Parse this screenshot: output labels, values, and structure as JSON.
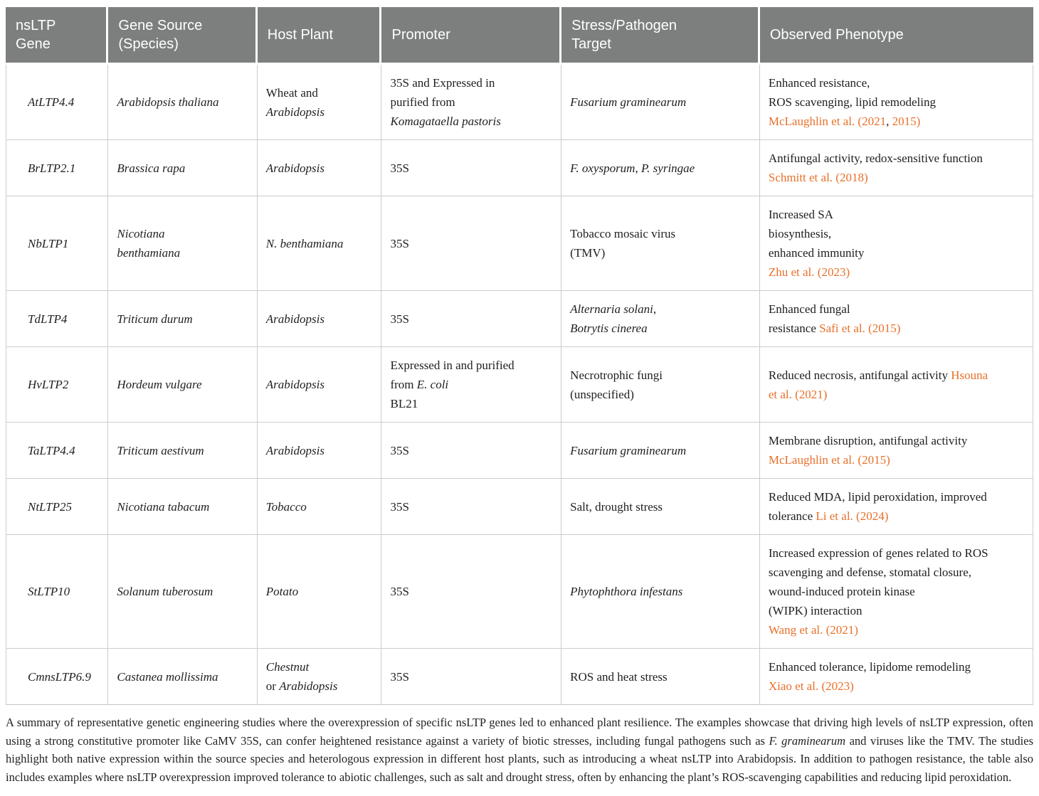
{
  "colors": {
    "header_bg": "#7c7f7e",
    "header_text": "#ffffff",
    "body_text": "#1e1e1e",
    "grid_border": "#cccccc",
    "citation": "#e8702a"
  },
  "table": {
    "columns": [
      {
        "id": "gene",
        "lines": [
          "nsLTP",
          "Gene"
        ]
      },
      {
        "id": "source",
        "lines": [
          "Gene Source",
          "(Species)"
        ]
      },
      {
        "id": "host",
        "lines": [
          "Host Plant"
        ]
      },
      {
        "id": "promoter",
        "lines": [
          "Promoter"
        ]
      },
      {
        "id": "stress",
        "lines": [
          "Stress/Pathogen",
          "Target"
        ]
      },
      {
        "id": "phenotype",
        "lines": [
          "Observed Phenotype"
        ]
      }
    ],
    "rows": [
      {
        "gene": [
          {
            "t": "AtLTP4.4",
            "i": 1
          }
        ],
        "source": [
          {
            "t": "Arabidopsis thaliana",
            "i": 1
          }
        ],
        "host": [
          {
            "t": "Wheat and"
          },
          {
            "nl": 1
          },
          {
            "t": "Arabidopsis",
            "i": 1
          }
        ],
        "promoter": [
          {
            "t": "35S and Expressed in"
          },
          {
            "nl": 1
          },
          {
            "t": "purified from"
          },
          {
            "nl": 1
          },
          {
            "t": "Komagataella pastoris",
            "i": 1
          }
        ],
        "stress": [
          {
            "t": "Fusarium graminearum",
            "i": 1
          }
        ],
        "phenotype": [
          {
            "t": "Enhanced resistance,"
          },
          {
            "nl": 1
          },
          {
            "t": "ROS scavenging, lipid remodeling"
          },
          {
            "nl": 1
          },
          {
            "t": "McLaughlin et al. (2021",
            "c": 1
          },
          {
            "t": ", "
          },
          {
            "t": "2015)",
            "c": 1
          }
        ]
      },
      {
        "gene": [
          {
            "t": "BrLTP2.1",
            "i": 1
          }
        ],
        "source": [
          {
            "t": "Brassica rapa",
            "i": 1
          }
        ],
        "host": [
          {
            "t": "Arabidopsis",
            "i": 1
          }
        ],
        "promoter": [
          {
            "t": "35S"
          }
        ],
        "stress": [
          {
            "t": "F. oxysporum",
            "i": 1
          },
          {
            "t": ", "
          },
          {
            "t": "P. syringae",
            "i": 1
          }
        ],
        "phenotype": [
          {
            "t": "Antifungal activity, redox-sensitive function"
          },
          {
            "nl": 1
          },
          {
            "t": "Schmitt et al. (2018)",
            "c": 1
          }
        ]
      },
      {
        "gene": [
          {
            "t": "NbLTP1",
            "i": 1
          }
        ],
        "source": [
          {
            "t": "Nicotiana",
            "i": 1
          },
          {
            "nl": 1
          },
          {
            "t": "benthamiana",
            "i": 1
          }
        ],
        "host": [
          {
            "t": "N. benthamiana",
            "i": 1
          }
        ],
        "promoter": [
          {
            "t": "35S"
          }
        ],
        "stress": [
          {
            "t": "Tobacco mosaic virus"
          },
          {
            "nl": 1
          },
          {
            "t": "(TMV)"
          }
        ],
        "phenotype": [
          {
            "t": "Increased SA"
          },
          {
            "nl": 1
          },
          {
            "t": "biosynthesis,"
          },
          {
            "nl": 1
          },
          {
            "t": "enhanced immunity"
          },
          {
            "nl": 1
          },
          {
            "t": "Zhu et al. (2023)",
            "c": 1
          }
        ]
      },
      {
        "gene": [
          {
            "t": "TdLTP4",
            "i": 1
          }
        ],
        "source": [
          {
            "t": "Triticum durum",
            "i": 1
          }
        ],
        "host": [
          {
            "t": "Arabidopsis",
            "i": 1
          }
        ],
        "promoter": [
          {
            "t": "35S"
          }
        ],
        "stress": [
          {
            "t": "Alternaria solani",
            "i": 1
          },
          {
            "t": ","
          },
          {
            "nl": 1
          },
          {
            "t": "Botrytis cinerea",
            "i": 1
          }
        ],
        "phenotype": [
          {
            "t": "Enhanced fungal"
          },
          {
            "nl": 1
          },
          {
            "t": "resistance "
          },
          {
            "t": "Safi et al. (2015)",
            "c": 1
          }
        ]
      },
      {
        "gene": [
          {
            "t": "HvLTP2",
            "i": 1
          }
        ],
        "source": [
          {
            "t": "Hordeum vulgare",
            "i": 1
          }
        ],
        "host": [
          {
            "t": "Arabidopsis",
            "i": 1
          }
        ],
        "promoter": [
          {
            "t": "Expressed in and purified"
          },
          {
            "nl": 1
          },
          {
            "t": "from "
          },
          {
            "t": "E. coli",
            "i": 1
          },
          {
            "nl": 1
          },
          {
            "t": "BL21"
          }
        ],
        "stress": [
          {
            "t": "Necrotrophic fungi"
          },
          {
            "nl": 1
          },
          {
            "t": "(unspecified)"
          }
        ],
        "phenotype": [
          {
            "t": "Reduced necrosis, antifungal activity "
          },
          {
            "t": "Hsouna",
            "c": 1
          },
          {
            "nl": 1
          },
          {
            "t": "et al. (2021)",
            "c": 1
          }
        ]
      },
      {
        "gene": [
          {
            "t": "TaLTP4.4",
            "i": 1
          }
        ],
        "source": [
          {
            "t": "Triticum aestivum",
            "i": 1
          }
        ],
        "host": [
          {
            "t": "Arabidopsis",
            "i": 1
          }
        ],
        "promoter": [
          {
            "t": "35S"
          }
        ],
        "stress": [
          {
            "t": "Fusarium graminearum",
            "i": 1
          }
        ],
        "phenotype": [
          {
            "t": "Membrane disruption, antifungal activity"
          },
          {
            "nl": 1
          },
          {
            "t": "McLaughlin et al. (2015)",
            "c": 1
          }
        ]
      },
      {
        "gene": [
          {
            "t": "NtLTP25",
            "i": 1
          }
        ],
        "source": [
          {
            "t": "Nicotiana tabacum",
            "i": 1
          }
        ],
        "host": [
          {
            "t": "Tobacco",
            "i": 1
          }
        ],
        "promoter": [
          {
            "t": "35S"
          }
        ],
        "stress": [
          {
            "t": "Salt, drought stress"
          }
        ],
        "phenotype": [
          {
            "t": "Reduced MDA, lipid peroxidation, improved"
          },
          {
            "nl": 1
          },
          {
            "t": "tolerance "
          },
          {
            "t": "Li et al. (2024)",
            "c": 1
          }
        ]
      },
      {
        "gene": [
          {
            "t": "StLTP10",
            "i": 1
          }
        ],
        "source": [
          {
            "t": "Solanum tuberosum",
            "i": 1
          }
        ],
        "host": [
          {
            "t": "Potato",
            "i": 1
          }
        ],
        "promoter": [
          {
            "t": "35S"
          }
        ],
        "stress": [
          {
            "t": "Phytophthora infestans",
            "i": 1
          }
        ],
        "phenotype": [
          {
            "t": "Increased expression of genes related to ROS"
          },
          {
            "nl": 1
          },
          {
            "t": "scavenging and defense, stomatal closure,"
          },
          {
            "nl": 1
          },
          {
            "t": "wound-induced protein kinase"
          },
          {
            "nl": 1
          },
          {
            "t": "(WIPK) interaction"
          },
          {
            "nl": 1
          },
          {
            "t": "Wang et al. (2021)",
            "c": 1
          }
        ]
      },
      {
        "gene": [
          {
            "t": "CmnsLTP6.9",
            "i": 1
          }
        ],
        "source": [
          {
            "t": "Castanea mollissima",
            "i": 1
          }
        ],
        "host": [
          {
            "t": "Chestnut",
            "i": 1
          },
          {
            "nl": 1
          },
          {
            "t": "or "
          },
          {
            "t": "Arabidopsis",
            "i": 1
          }
        ],
        "promoter": [
          {
            "t": "35S"
          }
        ],
        "stress": [
          {
            "t": "ROS and heat stress"
          }
        ],
        "phenotype": [
          {
            "t": "Enhanced tolerance, lipidome remodeling"
          },
          {
            "nl": 1
          },
          {
            "t": "Xiao et al. (2023)",
            "c": 1
          }
        ]
      }
    ]
  },
  "footnote": {
    "segments": [
      {
        "t": "A summary of representative genetic engineering studies where the overexpression of specific nsLTP genes led to enhanced plant resilience. The examples showcase that driving high levels of nsLTP expression, often using a strong constitutive promoter like CaMV 35S, can confer heightened resistance against a variety of biotic stresses, including fungal pathogens such as "
      },
      {
        "t": "F. graminearum",
        "i": 1
      },
      {
        "t": " and viruses like the TMV. The studies highlight both native expression within the source species and heterologous expression in different host plants, such as introducing a wheat nsLTP into Arabidopsis. In addition to pathogen resistance, the table also includes examples where nsLTP overexpression improved tolerance to abiotic challenges, such as salt and drought stress, often by enhancing the plant’s ROS-scavenging capabilities and reducing lipid peroxidation."
      }
    ]
  }
}
